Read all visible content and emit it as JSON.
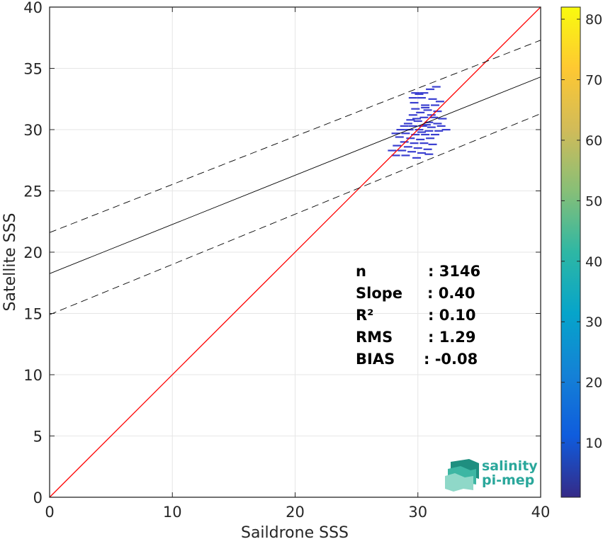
{
  "chart_data": {
    "type": "heatmap",
    "xlabel": "Saildrone SSS",
    "ylabel": "Satellite SSS",
    "xlim": [
      0,
      40
    ],
    "ylim": [
      0,
      40
    ],
    "xticks": [
      0,
      10,
      20,
      30,
      40
    ],
    "yticks": [
      0,
      5,
      10,
      15,
      20,
      25,
      30,
      35,
      40
    ],
    "grid": true,
    "colorbar": {
      "ticks": [
        10,
        20,
        30,
        40,
        50,
        60,
        70,
        80
      ],
      "range": [
        1,
        82
      ],
      "colormap": "parula",
      "colors": [
        "#352a87",
        "#0f5cdd",
        "#1481d6",
        "#06a4ca",
        "#2eb7a4",
        "#87bf77",
        "#d1bb59",
        "#fec832",
        "#f9fb0e"
      ]
    },
    "reference_lines": [
      {
        "kind": "one-to-one",
        "color": "#ff0000",
        "x": [
          0,
          40
        ],
        "y": [
          0,
          40
        ]
      },
      {
        "kind": "fit",
        "color": "#000000",
        "x": [
          0,
          40
        ],
        "y": [
          18.25,
          34.3
        ]
      },
      {
        "kind": "fit-upper",
        "color": "#000000",
        "dash": true,
        "x": [
          0,
          40
        ],
        "y": [
          21.6,
          37.3
        ]
      },
      {
        "kind": "fit-lower",
        "color": "#000000",
        "dash": true,
        "x": [
          0,
          40
        ],
        "y": [
          14.9,
          31.3
        ]
      }
    ],
    "density_cells": [
      {
        "x": 29.8,
        "y": 33.0
      },
      {
        "x": 31.0,
        "y": 33.3
      },
      {
        "x": 31.5,
        "y": 33.5
      },
      {
        "x": 30.5,
        "y": 33.0
      },
      {
        "x": 29.6,
        "y": 32.6
      },
      {
        "x": 30.3,
        "y": 32.6
      },
      {
        "x": 31.2,
        "y": 32.5
      },
      {
        "x": 31.8,
        "y": 32.3
      },
      {
        "x": 29.7,
        "y": 32.2
      },
      {
        "x": 30.6,
        "y": 32.0
      },
      {
        "x": 31.4,
        "y": 32.0
      },
      {
        "x": 29.8,
        "y": 31.7
      },
      {
        "x": 30.8,
        "y": 31.6
      },
      {
        "x": 31.6,
        "y": 31.5
      },
      {
        "x": 30.2,
        "y": 31.4
      },
      {
        "x": 29.6,
        "y": 31.2
      },
      {
        "x": 30.5,
        "y": 31.0
      },
      {
        "x": 31.3,
        "y": 31.0
      },
      {
        "x": 32.0,
        "y": 30.9
      },
      {
        "x": 29.4,
        "y": 30.8
      },
      {
        "x": 30.0,
        "y": 30.7
      },
      {
        "x": 30.9,
        "y": 30.6
      },
      {
        "x": 31.6,
        "y": 30.5
      },
      {
        "x": 29.2,
        "y": 30.5
      },
      {
        "x": 28.9,
        "y": 30.3
      },
      {
        "x": 29.6,
        "y": 30.3
      },
      {
        "x": 30.4,
        "y": 30.3
      },
      {
        "x": 31.1,
        "y": 30.2
      },
      {
        "x": 31.9,
        "y": 30.3
      },
      {
        "x": 28.6,
        "y": 30.0
      },
      {
        "x": 29.3,
        "y": 30.0
      },
      {
        "x": 30.1,
        "y": 30.0
      },
      {
        "x": 30.9,
        "y": 29.9
      },
      {
        "x": 31.7,
        "y": 29.9
      },
      {
        "x": 32.3,
        "y": 30.0
      },
      {
        "x": 28.2,
        "y": 29.7
      },
      {
        "x": 29.0,
        "y": 29.7
      },
      {
        "x": 29.8,
        "y": 29.6
      },
      {
        "x": 30.6,
        "y": 29.6
      },
      {
        "x": 31.4,
        "y": 29.6
      },
      {
        "x": 28.5,
        "y": 29.4
      },
      {
        "x": 29.4,
        "y": 29.3
      },
      {
        "x": 30.2,
        "y": 29.2
      },
      {
        "x": 31.0,
        "y": 29.3
      },
      {
        "x": 28.9,
        "y": 29.0
      },
      {
        "x": 29.7,
        "y": 28.9
      },
      {
        "x": 30.5,
        "y": 28.9
      },
      {
        "x": 31.2,
        "y": 28.8
      },
      {
        "x": 28.3,
        "y": 28.7
      },
      {
        "x": 29.2,
        "y": 28.6
      },
      {
        "x": 30.0,
        "y": 28.5
      },
      {
        "x": 30.8,
        "y": 28.4
      },
      {
        "x": 27.9,
        "y": 28.3
      },
      {
        "x": 28.7,
        "y": 28.3
      },
      {
        "x": 29.5,
        "y": 28.2
      },
      {
        "x": 30.3,
        "y": 28.1
      },
      {
        "x": 28.2,
        "y": 27.9
      },
      {
        "x": 29.0,
        "y": 27.9
      },
      {
        "x": 30.9,
        "y": 28.0
      },
      {
        "x": 29.9,
        "y": 27.7
      },
      {
        "x": 30.6,
        "y": 31.8
      },
      {
        "x": 30.1,
        "y": 32.9
      },
      {
        "x": 31.1,
        "y": 31.2
      },
      {
        "x": 30.7,
        "y": 30.4
      },
      {
        "x": 29.9,
        "y": 30.9
      },
      {
        "x": 30.3,
        "y": 29.8
      }
    ],
    "stats": [
      {
        "label": "n",
        "value": ": 3146"
      },
      {
        "label": "Slope",
        "value": ": 0.40"
      },
      {
        "label": "R²",
        "value": ": 0.10"
      },
      {
        "label": "RMS",
        "value": ": 1.29"
      },
      {
        "label": "BIAS",
        "value": ": -0.08"
      }
    ]
  },
  "logo": {
    "line1": "salinity",
    "line2": "pi-mep",
    "color": "#2aa79b"
  }
}
